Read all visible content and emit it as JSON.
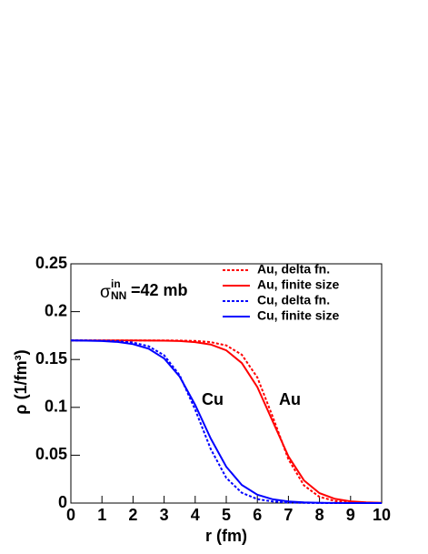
{
  "chart_data": {
    "type": "line",
    "x_label": "r (fm)",
    "y_label": "ρ (1/fm³)",
    "annotation": {
      "symbol": "σ",
      "sup": "in",
      "sub": "NN",
      "text": "=42 mb"
    },
    "curve_labels": [
      "Cu",
      "Au"
    ],
    "x": [
      0,
      0.5,
      1,
      1.5,
      2,
      2.5,
      3,
      3.5,
      4,
      4.5,
      5,
      5.5,
      6,
      6.5,
      7,
      7.5,
      8,
      8.5,
      9,
      9.5,
      10
    ],
    "series": [
      {
        "name": "Au, delta fn.",
        "color": "#ff0000",
        "dashed": true,
        "values": [
          0.17,
          0.17,
          0.17,
          0.17,
          0.17,
          0.17,
          0.17,
          0.1698,
          0.1694,
          0.1682,
          0.1647,
          0.155,
          0.1313,
          0.0897,
          0.0457,
          0.0184,
          0.0065,
          0.0022,
          0.0007,
          0.0002,
          0.0001
        ]
      },
      {
        "name": "Au, finite size",
        "color": "#ff0000",
        "dashed": false,
        "values": [
          0.17,
          0.17,
          0.17,
          0.17,
          0.1699,
          0.1698,
          0.1697,
          0.1693,
          0.1682,
          0.1657,
          0.1596,
          0.1463,
          0.1212,
          0.085,
          0.0488,
          0.0237,
          0.0104,
          0.0044,
          0.0018,
          0.0007,
          0.0003
        ]
      },
      {
        "name": "Cu, delta fn.",
        "color": "#0000ff",
        "dashed": true,
        "values": [
          0.17,
          0.1699,
          0.1697,
          0.1692,
          0.1677,
          0.1639,
          0.1545,
          0.1336,
          0.0976,
          0.0565,
          0.0263,
          0.0107,
          0.0041,
          0.0016,
          0.0006,
          0.0002,
          0.0001,
          0,
          0,
          0,
          0
        ]
      },
      {
        "name": "Cu, finite size",
        "color": "#0000ff",
        "dashed": false,
        "values": [
          0.1699,
          0.1697,
          0.1693,
          0.1683,
          0.1661,
          0.1613,
          0.1511,
          0.1321,
          0.1026,
          0.0675,
          0.0379,
          0.0189,
          0.0087,
          0.0039,
          0.0017,
          0.0007,
          0.0003,
          0.0001,
          0,
          0,
          0
        ]
      }
    ],
    "xlim": [
      0,
      10
    ],
    "xticks": [
      0,
      1,
      2,
      3,
      4,
      5,
      6,
      7,
      8,
      9,
      10
    ],
    "ylim": [
      0,
      0.25
    ],
    "yticks": [
      0,
      0.05,
      0.1,
      0.15,
      0.2,
      0.25
    ],
    "legend": "top-right"
  }
}
